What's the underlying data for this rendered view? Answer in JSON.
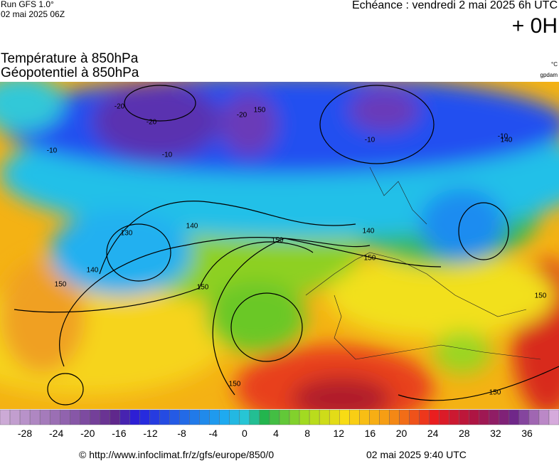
{
  "header": {
    "run": "Run GFS 1.0°",
    "date": "02 mai 2025 06Z",
    "echeance": "Echéance : vendredi 2 mai 2025 6h UTC",
    "offset": "+ 0H"
  },
  "title": {
    "line1": "Température à 850hPa",
    "line2": "Géopotentiel à 850hPa"
  },
  "units": {
    "temperature": "°C",
    "geopotential": "gpdam"
  },
  "map": {
    "contour_labels": [
      "-20",
      "-20",
      "-10",
      "-10",
      "-20",
      "150",
      "-10",
      "-10",
      "140",
      "130",
      "140",
      "150",
      "140",
      "150",
      "150",
      "150",
      "140",
      "150",
      "150",
      "150"
    ]
  },
  "colorbar": {
    "ticks": [
      -28,
      -24,
      -20,
      -16,
      -12,
      -8,
      -4,
      0,
      4,
      8,
      12,
      16,
      20,
      24,
      28,
      32,
      36
    ]
  },
  "footer": {
    "url": "© http://www.infoclimat.fr/z/gfs/europe/850/0",
    "time": "02 mai 2025  9:40 UTC"
  }
}
